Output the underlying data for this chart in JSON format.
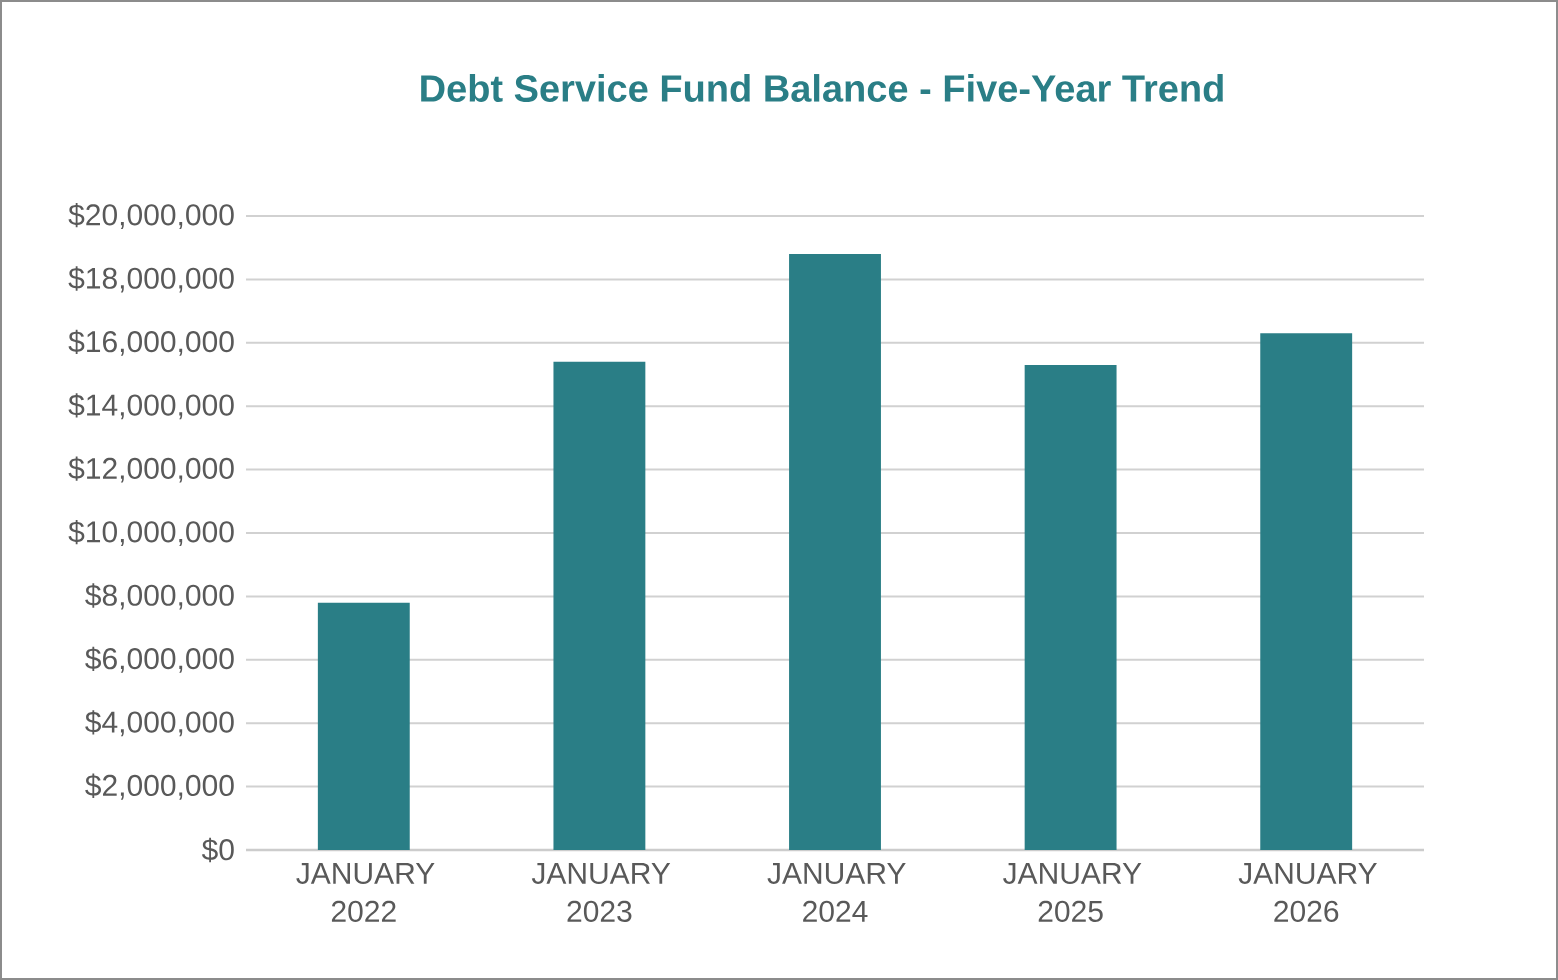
{
  "chart_data": {
    "type": "bar",
    "title": "Debt Service Fund Balance - Five-Year Trend",
    "categories": [
      "JANUARY 2022",
      "JANUARY 2023",
      "JANUARY 2024",
      "JANUARY 2025",
      "JANUARY 2026"
    ],
    "values": [
      7800000,
      15400000,
      18800000,
      15300000,
      16300000
    ],
    "color": "#2a7e86",
    "ylim": [
      0,
      20000000
    ],
    "yticks": [
      {
        "value": 0,
        "label": "$0"
      },
      {
        "value": 2000000,
        "label": "$2,000,000"
      },
      {
        "value": 4000000,
        "label": "$4,000,000"
      },
      {
        "value": 6000000,
        "label": "$6,000,000"
      },
      {
        "value": 8000000,
        "label": "$8,000,000"
      },
      {
        "value": 10000000,
        "label": "$10,000,000"
      },
      {
        "value": 12000000,
        "label": "$12,000,000"
      },
      {
        "value": 14000000,
        "label": "$14,000,000"
      },
      {
        "value": 16000000,
        "label": "$16,000,000"
      },
      {
        "value": 18000000,
        "label": "$18,000,000"
      },
      {
        "value": 20000000,
        "label": "$20,000,000"
      }
    ],
    "grid": "y"
  }
}
